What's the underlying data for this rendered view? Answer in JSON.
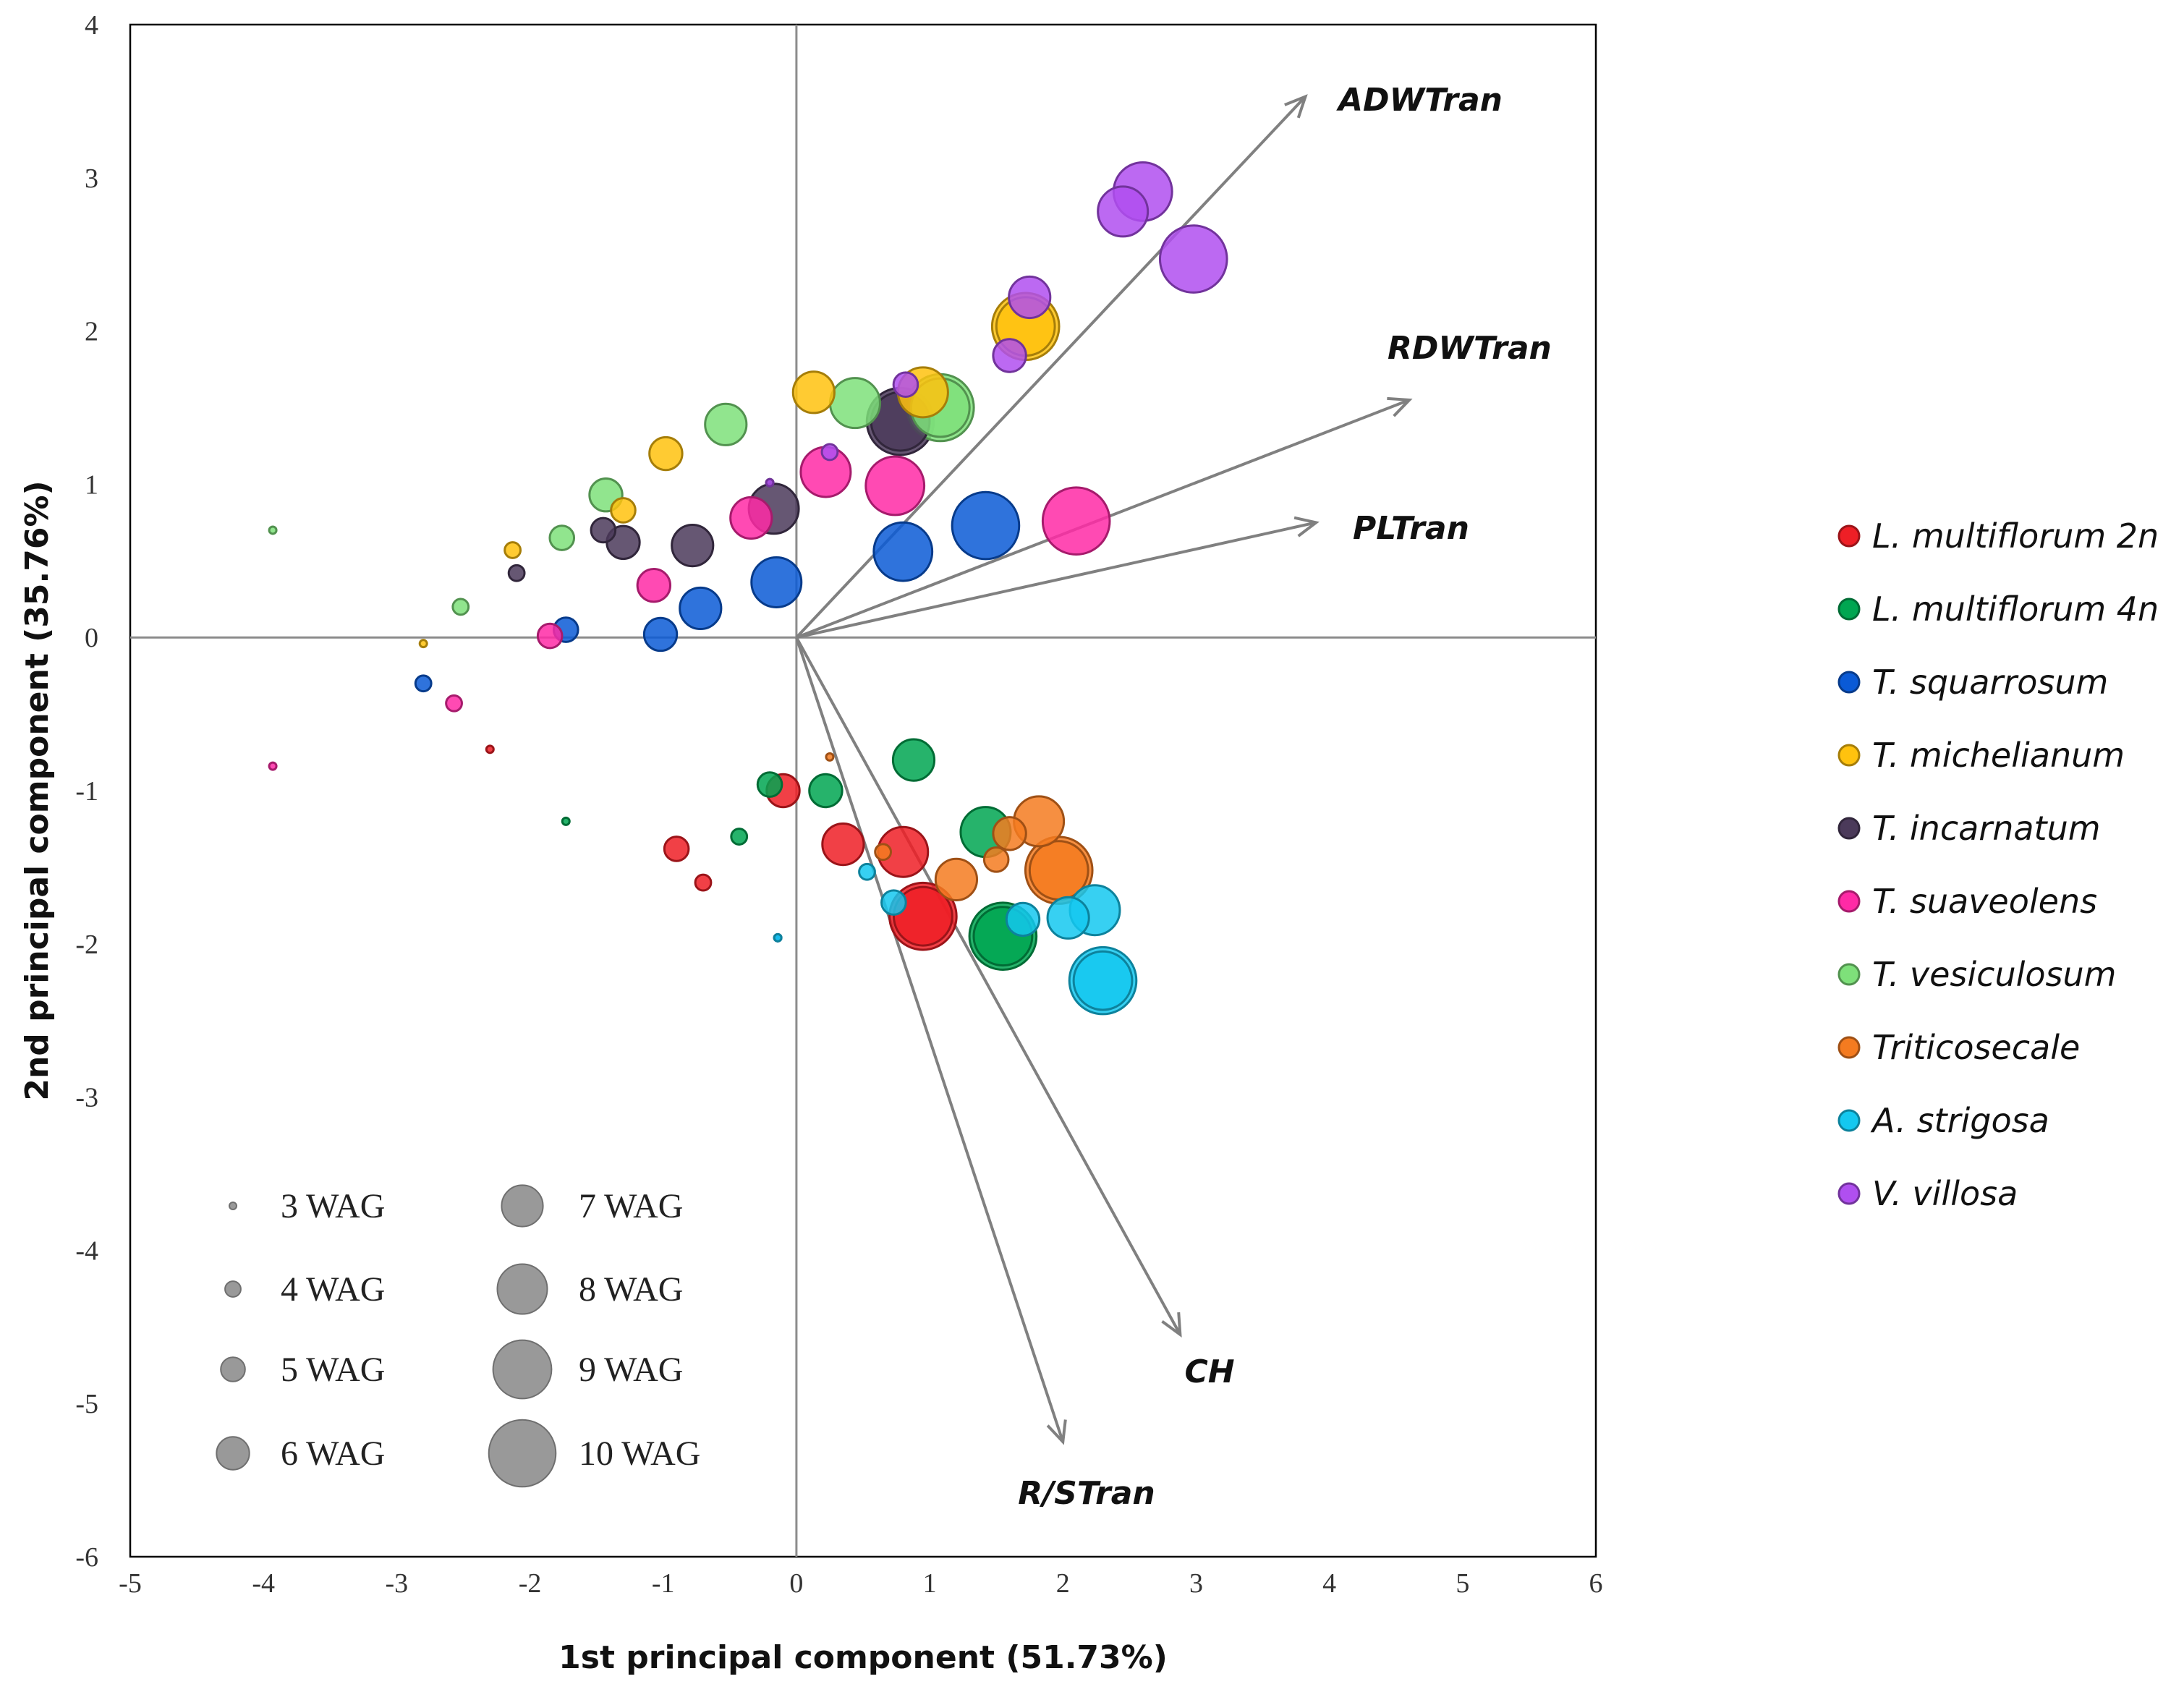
{
  "chart_data": {
    "type": "scatter",
    "subtype": "pca-biplot-bubble",
    "xlabel": "1st principal component (51.73%)",
    "ylabel": "2nd principal component (35.76%)",
    "xlim": [
      -5,
      6
    ],
    "ylim": [
      -6,
      4
    ],
    "xticks": [
      "-5",
      "-4",
      "-3",
      "-2",
      "-1",
      "0",
      "1",
      "2",
      "3",
      "4",
      "5",
      "6"
    ],
    "yticks": [
      "4",
      "3",
      "2",
      "1",
      "0",
      "-1",
      "-2",
      "-3",
      "-4",
      "-5",
      "-6"
    ],
    "grid": false,
    "origin_axes": true,
    "legend_position": "right",
    "colors": {
      "L. multiflorum 2n": "#ee1f26",
      "L. multiflorum 4n": "#00a651",
      "T. squarrosum": "#0a5ad6",
      "T. michelianum": "#ffc20e",
      "T. incarnatum": "#4b3a5a",
      "T. suaveolens": "#ff2aa6",
      "T. vesiculosum": "#7ee07a",
      "Triticosecale": "#f47b20",
      "A. strigosa": "#14c8f0",
      "V. villosa": "#b04ff0"
    },
    "series": [
      {
        "name": "L. multiflorum 2n",
        "wag": [
          3,
          4,
          5,
          6,
          7,
          8,
          9,
          10
        ],
        "x": [
          -2.3,
          -0.7,
          -0.9,
          -0.1,
          0.35,
          0.8,
          0.95,
          0.95
        ],
        "y": [
          -0.73,
          -1.6,
          -1.38,
          -1.0,
          -1.35,
          -1.4,
          -1.82,
          -1.82
        ]
      },
      {
        "name": "L. multiflorum 4n",
        "wag": [
          3,
          4,
          5,
          6,
          7,
          8,
          9,
          10
        ],
        "x": [
          -1.73,
          -0.43,
          -0.2,
          0.22,
          0.88,
          1.42,
          1.55,
          1.55
        ],
        "y": [
          -1.2,
          -1.3,
          -0.96,
          -1.0,
          -0.8,
          -1.27,
          -1.95,
          -1.95
        ]
      },
      {
        "name": "T. squarrosum",
        "wag": [
          3,
          4,
          5,
          6,
          7,
          8,
          9,
          10
        ],
        "x": [
          -0.14,
          -2.8,
          -1.73,
          -1.02,
          -0.72,
          -0.15,
          0.8,
          1.42
        ],
        "y": [
          -1.96,
          -0.3,
          0.05,
          0.02,
          0.19,
          0.36,
          0.56,
          0.73
        ]
      },
      {
        "name": "T. michelianum",
        "wag": [
          3,
          4,
          5,
          6,
          7,
          8,
          9,
          10
        ],
        "x": [
          -2.8,
          -2.13,
          -1.3,
          -0.98,
          0.13,
          0.95,
          1.72,
          1.72
        ],
        "y": [
          -0.04,
          0.57,
          0.83,
          1.2,
          1.6,
          1.6,
          2.03,
          2.03
        ]
      },
      {
        "name": "T. incarnatum",
        "wag": [
          3,
          4,
          5,
          6,
          7,
          8,
          9,
          10
        ],
        "x": [
          -0.2,
          -2.1,
          -1.45,
          -1.3,
          -0.78,
          -0.17,
          0.78,
          0.78
        ],
        "y": [
          1.01,
          0.42,
          0.7,
          0.62,
          0.6,
          0.84,
          1.41,
          1.41
        ]
      },
      {
        "name": "T. suaveolens",
        "wag": [
          3,
          4,
          5,
          6,
          7,
          8,
          9,
          10
        ],
        "x": [
          -3.93,
          -2.57,
          -1.85,
          -1.07,
          -0.34,
          0.22,
          0.74,
          2.1
        ],
        "y": [
          -0.84,
          -0.43,
          0.01,
          0.34,
          0.78,
          1.08,
          0.99,
          0.76
        ]
      },
      {
        "name": "T. vesiculosum",
        "wag": [
          3,
          4,
          5,
          6,
          7,
          8,
          9,
          10
        ],
        "x": [
          -3.93,
          -2.52,
          -1.76,
          -1.43,
          -0.53,
          0.44,
          1.08,
          1.08
        ],
        "y": [
          0.7,
          0.2,
          0.65,
          0.93,
          1.39,
          1.53,
          1.5,
          1.5
        ]
      },
      {
        "name": "Triticosecale",
        "wag": [
          3,
          4,
          5,
          6,
          7,
          8,
          9,
          10
        ],
        "x": [
          0.25,
          0.65,
          1.5,
          1.6,
          1.2,
          1.82,
          1.97,
          1.97
        ],
        "y": [
          -0.78,
          -1.4,
          -1.45,
          -1.28,
          -1.58,
          -1.2,
          -1.52,
          -1.52
        ]
      },
      {
        "name": "A. strigosa",
        "wag": [
          3,
          4,
          5,
          6,
          7,
          8,
          9,
          10
        ],
        "x": [
          -0.14,
          0.53,
          0.73,
          1.7,
          2.04,
          2.24,
          2.3,
          2.3
        ],
        "y": [
          -1.96,
          -1.53,
          -1.73,
          -1.84,
          -1.83,
          -1.78,
          -2.24,
          -2.24
        ]
      },
      {
        "name": "V. villosa",
        "wag": [
          3,
          4,
          5,
          6,
          7,
          8,
          9,
          10
        ],
        "x": [
          -0.2,
          0.25,
          0.82,
          1.6,
          1.75,
          2.45,
          2.6,
          2.98
        ],
        "y": [
          1.01,
          1.21,
          1.65,
          1.84,
          2.22,
          2.78,
          2.91,
          2.47
        ]
      }
    ],
    "vectors": [
      {
        "name": "ADWTran",
        "x": 3.82,
        "y": 3.53
      },
      {
        "name": "RDWTran",
        "x": 4.6,
        "y": 1.55
      },
      {
        "name": "PLTran",
        "x": 3.9,
        "y": 0.75
      },
      {
        "name": "CH",
        "x": 2.88,
        "y": -4.55
      },
      {
        "name": "R/STran",
        "x": 2.0,
        "y": -5.25
      }
    ],
    "size_legend": [
      {
        "wag": 3,
        "label": "3 WAG"
      },
      {
        "wag": 4,
        "label": "4 WAG"
      },
      {
        "wag": 5,
        "label": "5 WAG"
      },
      {
        "wag": 6,
        "label": "6 WAG"
      },
      {
        "wag": 7,
        "label": "7 WAG"
      },
      {
        "wag": 8,
        "label": "8 WAG"
      },
      {
        "wag": 9,
        "label": "9 WAG"
      },
      {
        "wag": 10,
        "label": "10 WAG"
      }
    ]
  }
}
